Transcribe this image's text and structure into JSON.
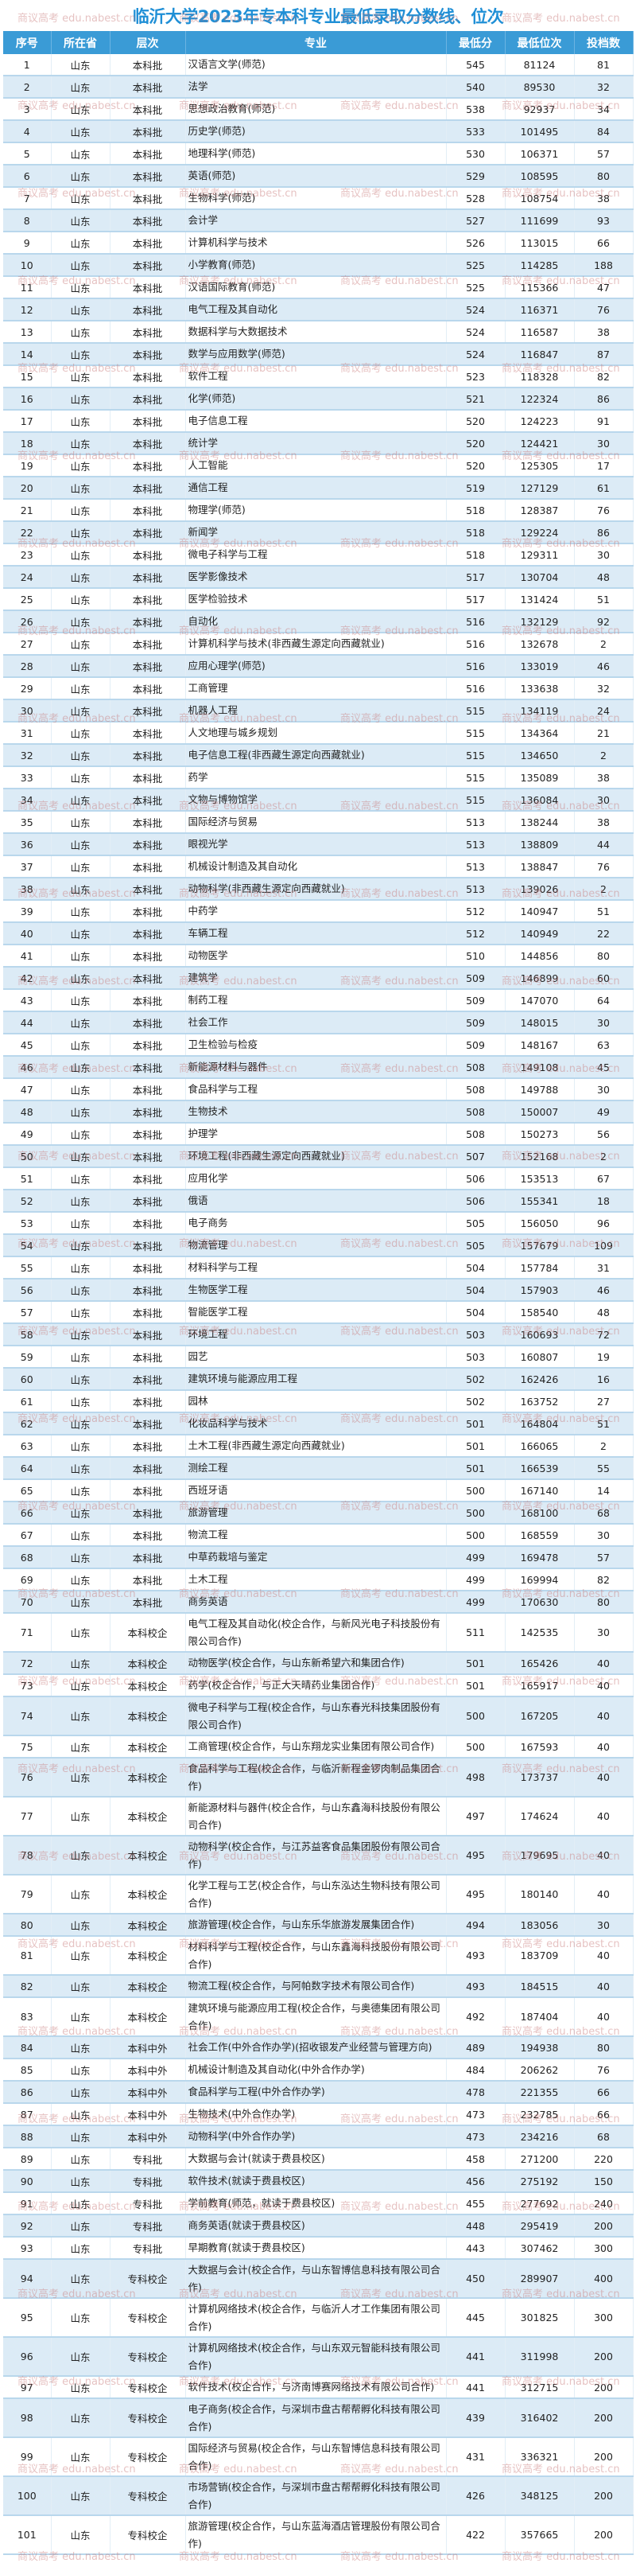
{
  "title": "临沂大学2023年专本科专业最低录取分数线、位次",
  "watermark": "商议高考 edu.nabest.cn",
  "colors": {
    "header_bg": "#3a9bd6",
    "title": "#1f8fd6",
    "stripe": "#dcebf6",
    "watermark": "#c87878"
  },
  "columns": [
    "序号",
    "所在省",
    "层次",
    "专业",
    "最低分",
    "最低位次",
    "投档数"
  ],
  "rows": [
    [
      "1",
      "山东",
      "本科批",
      "汉语言文学(师范)",
      "545",
      "81124",
      "81"
    ],
    [
      "2",
      "山东",
      "本科批",
      "法学",
      "540",
      "89530",
      "32"
    ],
    [
      "3",
      "山东",
      "本科批",
      "思想政治教育(师范)",
      "538",
      "92937",
      "34"
    ],
    [
      "4",
      "山东",
      "本科批",
      "历史学(师范)",
      "533",
      "101495",
      "84"
    ],
    [
      "5",
      "山东",
      "本科批",
      "地理科学(师范)",
      "530",
      "106371",
      "57"
    ],
    [
      "6",
      "山东",
      "本科批",
      "英语(师范)",
      "529",
      "108595",
      "80"
    ],
    [
      "7",
      "山东",
      "本科批",
      "生物科学(师范)",
      "528",
      "108754",
      "38"
    ],
    [
      "8",
      "山东",
      "本科批",
      "会计学",
      "527",
      "111699",
      "93"
    ],
    [
      "9",
      "山东",
      "本科批",
      "计算机科学与技术",
      "526",
      "113015",
      "66"
    ],
    [
      "10",
      "山东",
      "本科批",
      "小学教育(师范)",
      "525",
      "114285",
      "188"
    ],
    [
      "11",
      "山东",
      "本科批",
      "汉语国际教育(师范)",
      "525",
      "115366",
      "47"
    ],
    [
      "12",
      "山东",
      "本科批",
      "电气工程及其自动化",
      "524",
      "116371",
      "76"
    ],
    [
      "13",
      "山东",
      "本科批",
      "数据科学与大数据技术",
      "524",
      "116587",
      "38"
    ],
    [
      "14",
      "山东",
      "本科批",
      "数学与应用数学(师范)",
      "524",
      "116847",
      "87"
    ],
    [
      "15",
      "山东",
      "本科批",
      "软件工程",
      "523",
      "118328",
      "82"
    ],
    [
      "16",
      "山东",
      "本科批",
      "化学(师范)",
      "521",
      "122324",
      "86"
    ],
    [
      "17",
      "山东",
      "本科批",
      "电子信息工程",
      "520",
      "124223",
      "91"
    ],
    [
      "18",
      "山东",
      "本科批",
      "统计学",
      "520",
      "124421",
      "30"
    ],
    [
      "19",
      "山东",
      "本科批",
      "人工智能",
      "520",
      "125305",
      "17"
    ],
    [
      "20",
      "山东",
      "本科批",
      "通信工程",
      "519",
      "127129",
      "61"
    ],
    [
      "21",
      "山东",
      "本科批",
      "物理学(师范)",
      "518",
      "128387",
      "76"
    ],
    [
      "22",
      "山东",
      "本科批",
      "新闻学",
      "518",
      "129224",
      "86"
    ],
    [
      "23",
      "山东",
      "本科批",
      "微电子科学与工程",
      "518",
      "129311",
      "30"
    ],
    [
      "24",
      "山东",
      "本科批",
      "医学影像技术",
      "517",
      "130704",
      "48"
    ],
    [
      "25",
      "山东",
      "本科批",
      "医学检验技术",
      "517",
      "131424",
      "51"
    ],
    [
      "26",
      "山东",
      "本科批",
      "自动化",
      "516",
      "132129",
      "92"
    ],
    [
      "27",
      "山东",
      "本科批",
      "计算机科学与技术(非西藏生源定向西藏就业)",
      "516",
      "132678",
      "2"
    ],
    [
      "28",
      "山东",
      "本科批",
      "应用心理学(师范)",
      "516",
      "133019",
      "46"
    ],
    [
      "29",
      "山东",
      "本科批",
      "工商管理",
      "516",
      "133638",
      "32"
    ],
    [
      "30",
      "山东",
      "本科批",
      "机器人工程",
      "515",
      "134119",
      "24"
    ],
    [
      "31",
      "山东",
      "本科批",
      "人文地理与城乡规划",
      "515",
      "134364",
      "21"
    ],
    [
      "32",
      "山东",
      "本科批",
      "电子信息工程(非西藏生源定向西藏就业)",
      "515",
      "134650",
      "2"
    ],
    [
      "33",
      "山东",
      "本科批",
      "药学",
      "515",
      "135089",
      "38"
    ],
    [
      "34",
      "山东",
      "本科批",
      "文物与博物馆学",
      "515",
      "136084",
      "30"
    ],
    [
      "35",
      "山东",
      "本科批",
      "国际经济与贸易",
      "513",
      "138244",
      "38"
    ],
    [
      "36",
      "山东",
      "本科批",
      "眼视光学",
      "513",
      "138809",
      "44"
    ],
    [
      "37",
      "山东",
      "本科批",
      "机械设计制造及其自动化",
      "513",
      "138847",
      "76"
    ],
    [
      "38",
      "山东",
      "本科批",
      "动物科学(非西藏生源定向西藏就业)",
      "513",
      "139026",
      "2"
    ],
    [
      "39",
      "山东",
      "本科批",
      "中药学",
      "512",
      "140947",
      "51"
    ],
    [
      "40",
      "山东",
      "本科批",
      "车辆工程",
      "512",
      "140949",
      "22"
    ],
    [
      "41",
      "山东",
      "本科批",
      "动物医学",
      "510",
      "144856",
      "80"
    ],
    [
      "42",
      "山东",
      "本科批",
      "建筑学",
      "509",
      "146899",
      "60"
    ],
    [
      "43",
      "山东",
      "本科批",
      "制药工程",
      "509",
      "147070",
      "64"
    ],
    [
      "44",
      "山东",
      "本科批",
      "社会工作",
      "509",
      "148015",
      "30"
    ],
    [
      "45",
      "山东",
      "本科批",
      "卫生检验与检疫",
      "509",
      "148167",
      "63"
    ],
    [
      "46",
      "山东",
      "本科批",
      "新能源材料与器件",
      "508",
      "149108",
      "45"
    ],
    [
      "47",
      "山东",
      "本科批",
      "食品科学与工程",
      "508",
      "149788",
      "30"
    ],
    [
      "48",
      "山东",
      "本科批",
      "生物技术",
      "508",
      "150007",
      "49"
    ],
    [
      "49",
      "山东",
      "本科批",
      "护理学",
      "508",
      "150273",
      "56"
    ],
    [
      "50",
      "山东",
      "本科批",
      "环境工程(非西藏生源定向西藏就业)",
      "507",
      "152168",
      "2"
    ],
    [
      "51",
      "山东",
      "本科批",
      "应用化学",
      "506",
      "153513",
      "67"
    ],
    [
      "52",
      "山东",
      "本科批",
      "俄语",
      "506",
      "155341",
      "18"
    ],
    [
      "53",
      "山东",
      "本科批",
      "电子商务",
      "505",
      "156050",
      "96"
    ],
    [
      "54",
      "山东",
      "本科批",
      "物流管理",
      "505",
      "157679",
      "109"
    ],
    [
      "55",
      "山东",
      "本科批",
      "材料科学与工程",
      "504",
      "157784",
      "31"
    ],
    [
      "56",
      "山东",
      "本科批",
      "生物医学工程",
      "504",
      "157903",
      "46"
    ],
    [
      "57",
      "山东",
      "本科批",
      "智能医学工程",
      "504",
      "158540",
      "48"
    ],
    [
      "58",
      "山东",
      "本科批",
      "环境工程",
      "503",
      "160693",
      "72"
    ],
    [
      "59",
      "山东",
      "本科批",
      "园艺",
      "503",
      "160807",
      "19"
    ],
    [
      "60",
      "山东",
      "本科批",
      "建筑环境与能源应用工程",
      "502",
      "162426",
      "16"
    ],
    [
      "61",
      "山东",
      "本科批",
      "园林",
      "502",
      "163752",
      "27"
    ],
    [
      "62",
      "山东",
      "本科批",
      "化妆品科学与技术",
      "501",
      "164804",
      "51"
    ],
    [
      "63",
      "山东",
      "本科批",
      "土木工程(非西藏生源定向西藏就业)",
      "501",
      "166065",
      "2"
    ],
    [
      "64",
      "山东",
      "本科批",
      "测绘工程",
      "501",
      "166539",
      "55"
    ],
    [
      "65",
      "山东",
      "本科批",
      "西班牙语",
      "500",
      "167140",
      "14"
    ],
    [
      "66",
      "山东",
      "本科批",
      "旅游管理",
      "500",
      "168100",
      "68"
    ],
    [
      "67",
      "山东",
      "本科批",
      "物流工程",
      "500",
      "168559",
      "30"
    ],
    [
      "68",
      "山东",
      "本科批",
      "中草药栽培与鉴定",
      "499",
      "169478",
      "57"
    ],
    [
      "69",
      "山东",
      "本科批",
      "土木工程",
      "499",
      "169994",
      "82"
    ],
    [
      "70",
      "山东",
      "本科批",
      "商务英语",
      "499",
      "170630",
      "80"
    ],
    [
      "71",
      "山东",
      "本科校企",
      "电气工程及其自动化(校企合作，与新风光电子科技股份有限公司合作)",
      "511",
      "142535",
      "30"
    ],
    [
      "72",
      "山东",
      "本科校企",
      "动物医学(校企合作，与山东新希望六和集团合作)",
      "501",
      "165426",
      "40"
    ],
    [
      "73",
      "山东",
      "本科校企",
      "药学(校企合作，与正大天晴药业集团合作)",
      "501",
      "165917",
      "40"
    ],
    [
      "74",
      "山东",
      "本科校企",
      "微电子科学与工程(校企合作，与山东春光科技集团股份有限公司合作)",
      "500",
      "167205",
      "40"
    ],
    [
      "75",
      "山东",
      "本科校企",
      "工商管理(校企合作，与山东翔龙实业集团有限公司合作)",
      "500",
      "167593",
      "40"
    ],
    [
      "76",
      "山东",
      "本科校企",
      "食品科学与工程(校企合作，与临沂新程金锣肉制品集团合作)",
      "498",
      "173737",
      "40"
    ],
    [
      "77",
      "山东",
      "本科校企",
      "新能源材料与器件(校企合作，与山东鑫海科技股份有限公司合作)",
      "497",
      "174624",
      "40"
    ],
    [
      "78",
      "山东",
      "本科校企",
      "动物科学(校企合作，与江苏益客食品集团股份有限公司合作)",
      "495",
      "179695",
      "40"
    ],
    [
      "79",
      "山东",
      "本科校企",
      "化学工程与工艺(校企合作，与山东泓达生物科技有限公司合作)",
      "495",
      "180140",
      "40"
    ],
    [
      "80",
      "山东",
      "本科校企",
      "旅游管理(校企合作，与山东乐华旅游发展集团合作)",
      "494",
      "183056",
      "30"
    ],
    [
      "81",
      "山东",
      "本科校企",
      "材料科学与工程(校企合作，与山东鑫海科技股份有限公司合作)",
      "493",
      "183709",
      "40"
    ],
    [
      "82",
      "山东",
      "本科校企",
      "物流工程(校企合作，与阿帕数字技术有限公司合作)",
      "493",
      "184515",
      "40"
    ],
    [
      "83",
      "山东",
      "本科校企",
      "建筑环境与能源应用工程(校企合作，与奥德集团有限公司合作)",
      "492",
      "187404",
      "40"
    ],
    [
      "84",
      "山东",
      "本科中外",
      "社会工作(中外合作办学)(招收银发产业经营与管理方向)",
      "489",
      "194938",
      "80"
    ],
    [
      "85",
      "山东",
      "本科中外",
      "机械设计制造及其自动化(中外合作办学)",
      "484",
      "206262",
      "76"
    ],
    [
      "86",
      "山东",
      "本科中外",
      "食品科学与工程(中外合作办学)",
      "478",
      "221355",
      "66"
    ],
    [
      "87",
      "山东",
      "本科中外",
      "生物技术(中外合作办学)",
      "473",
      "232785",
      "66"
    ],
    [
      "88",
      "山东",
      "本科中外",
      "动物科学(中外合作办学)",
      "473",
      "234216",
      "68"
    ],
    [
      "89",
      "山东",
      "专科批",
      "大数据与会计(就读于费县校区)",
      "458",
      "271200",
      "220"
    ],
    [
      "90",
      "山东",
      "专科批",
      "软件技术(就读于费县校区)",
      "456",
      "275192",
      "150"
    ],
    [
      "91",
      "山东",
      "专科批",
      "学前教育(师范，就读于费县校区)",
      "455",
      "277692",
      "240"
    ],
    [
      "92",
      "山东",
      "专科批",
      "商务英语(就读于费县校区)",
      "448",
      "295419",
      "200"
    ],
    [
      "93",
      "山东",
      "专科批",
      "早期教育(就读于费县校区)",
      "443",
      "307462",
      "300"
    ],
    [
      "94",
      "山东",
      "专科校企",
      "大数据与会计(校企合作，与山东智博信息科技有限公司合作)",
      "450",
      "289907",
      "400"
    ],
    [
      "95",
      "山东",
      "专科校企",
      "计算机网络技术(校企合作，与临沂人才工作集团有限公司合作)",
      "445",
      "301825",
      "300"
    ],
    [
      "96",
      "山东",
      "专科校企",
      "计算机网络技术(校企合作，与山东双元智能科技有限公司合作)",
      "441",
      "311998",
      "200"
    ],
    [
      "97",
      "山东",
      "专科校企",
      "软件技术(校企合作，与济南博赛网络技术有限公司合作)",
      "441",
      "312715",
      "200"
    ],
    [
      "98",
      "山东",
      "专科校企",
      "电子商务(校企合作，与深圳市盘古帮帮孵化科技有限公司合作)",
      "439",
      "316402",
      "200"
    ],
    [
      "99",
      "山东",
      "专科校企",
      "国际经济与贸易(校企合作，与山东智博信息科技有限公司合作)",
      "431",
      "336321",
      "200"
    ],
    [
      "100",
      "山东",
      "专科校企",
      "市场营销(校企合作，与深圳市盘古帮帮孵化科技有限公司合作)",
      "426",
      "348125",
      "200"
    ],
    [
      "101",
      "山东",
      "专科校企",
      "旅游管理(校企合作，与山东蓝海酒店管理股份有限公司合作)",
      "422",
      "357665",
      "200"
    ]
  ]
}
